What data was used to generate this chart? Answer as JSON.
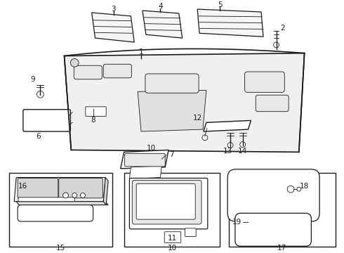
{
  "bg_color": "#ffffff",
  "line_color": "#1a1a1a",
  "fig_width": 4.9,
  "fig_height": 3.6,
  "dpi": 100,
  "label_fontsize": 7.5,
  "lw_main": 1.0,
  "lw_thin": 0.6
}
